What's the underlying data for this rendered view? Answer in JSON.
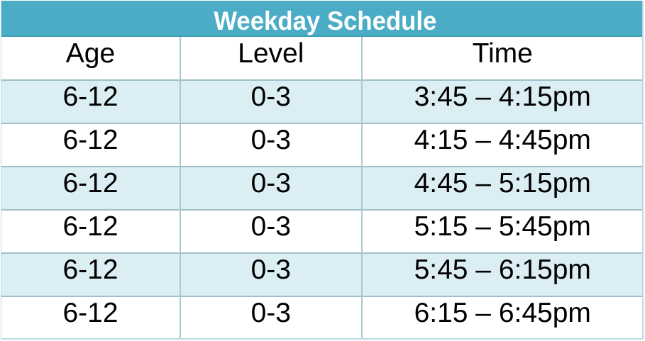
{
  "title": "Weekday Schedule",
  "table": {
    "columns": [
      "Age",
      "Level",
      "Time"
    ],
    "rows": [
      {
        "age": "6-12",
        "level": "0-3",
        "time": "3:45 – 4:15pm"
      },
      {
        "age": "6-12",
        "level": "0-3",
        "time": "4:15 – 4:45pm"
      },
      {
        "age": "6-12",
        "level": "0-3",
        "time": "4:45 – 5:15pm"
      },
      {
        "age": "6-12",
        "level": "0-3",
        "time": "5:15 – 5:45pm"
      },
      {
        "age": "6-12",
        "level": "0-3",
        "time": "5:45 – 6:15pm"
      },
      {
        "age": "6-12",
        "level": "0-3",
        "time": "6:15 – 6:45pm"
      }
    ]
  },
  "chart_data": {
    "type": "table",
    "title": "Weekday Schedule",
    "columns": [
      "Age",
      "Level",
      "Time"
    ],
    "rows": [
      [
        "6-12",
        "0-3",
        "3:45 – 4:15pm"
      ],
      [
        "6-12",
        "0-3",
        "4:15 – 4:45pm"
      ],
      [
        "6-12",
        "0-3",
        "4:45 – 5:15pm"
      ],
      [
        "6-12",
        "0-3",
        "5:15 – 5:45pm"
      ],
      [
        "6-12",
        "0-3",
        "5:45 – 6:15pm"
      ],
      [
        "6-12",
        "0-3",
        "6:15 – 6:45pm"
      ]
    ]
  },
  "colors": {
    "title_bg": "#4bacc6",
    "title_fg": "#ffffff",
    "title_border": "#3f9fb7",
    "title_border_top": "#58abbf",
    "band_bg": "#dbeef4",
    "grid_line": "#9fc0c8",
    "grid_vline": "#a9c9d1",
    "outer_border": "#bcdae1",
    "text": "#000000"
  }
}
